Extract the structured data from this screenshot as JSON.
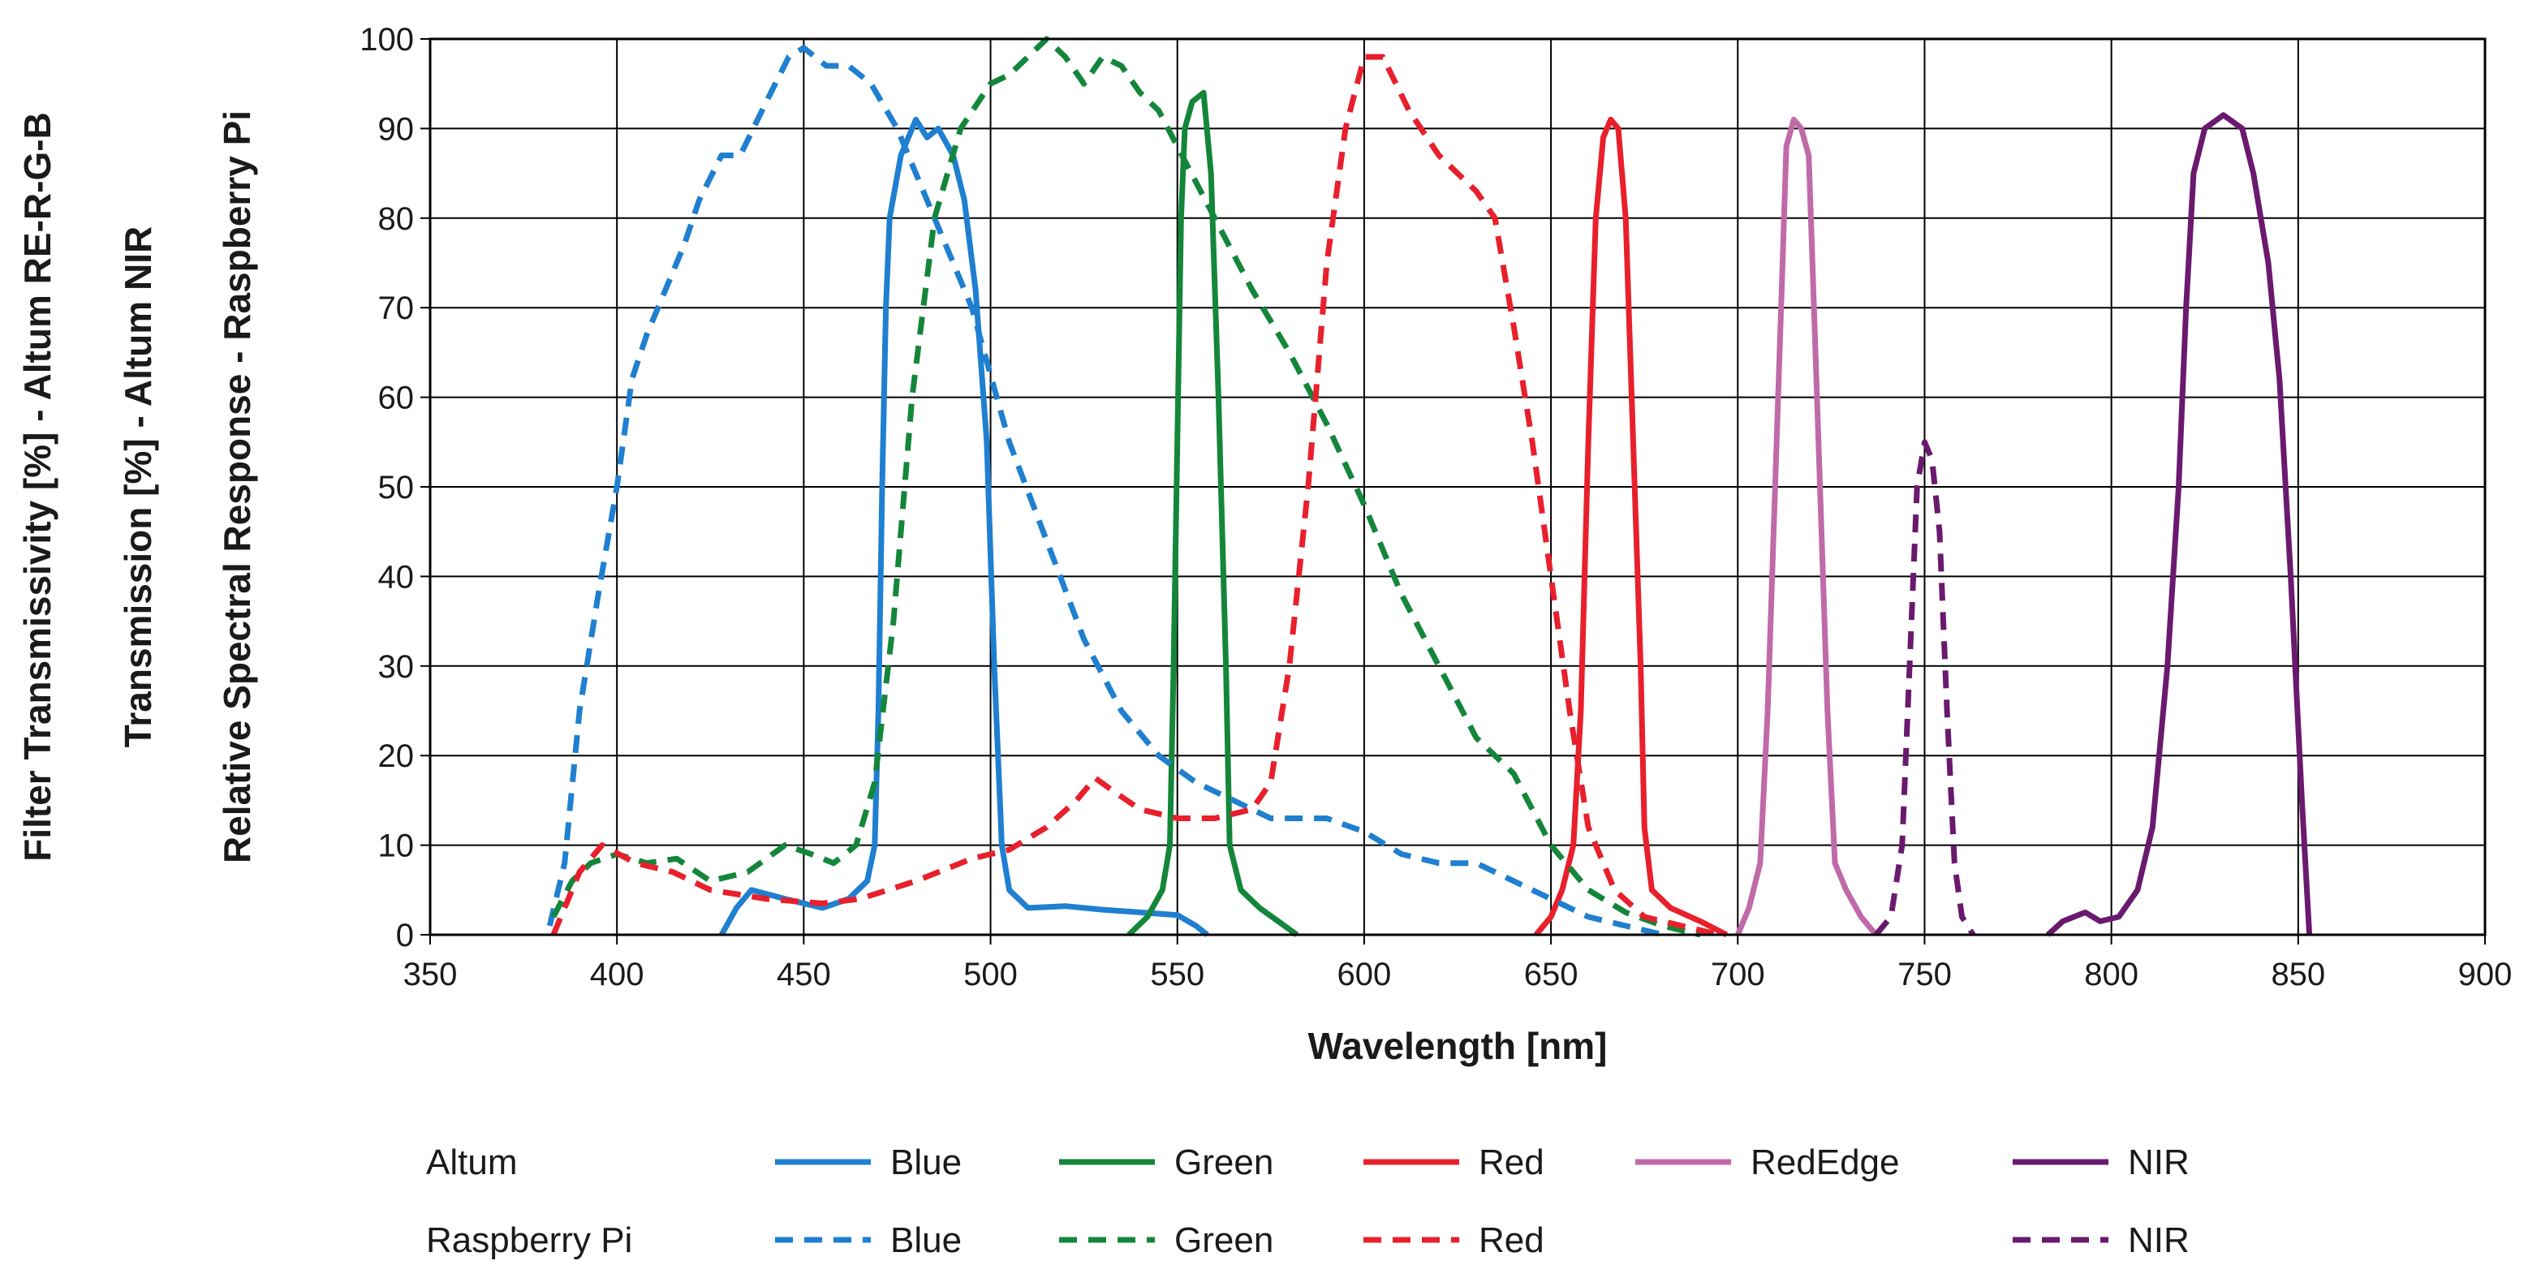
{
  "chart_data": {
    "type": "line",
    "xlabel": "Wavelength [nm]",
    "ylabels": [
      "Filter Transmissivity [%] - Altum RE-R-G-B",
      "Transmission [%] - Altum NIR",
      "Relative Spectral Response - Raspberry Pi"
    ],
    "xlim": [
      350,
      900
    ],
    "ylim": [
      0,
      100
    ],
    "xticks": [
      350,
      400,
      450,
      500,
      550,
      600,
      650,
      700,
      750,
      800,
      850,
      900
    ],
    "yticks": [
      0,
      10,
      20,
      30,
      40,
      50,
      60,
      70,
      80,
      90,
      100
    ],
    "grid": true,
    "legend": {
      "placement": "bottom",
      "rows": [
        "Altum",
        "Raspberry Pi"
      ]
    },
    "series": [
      {
        "name": "Blue",
        "group": "Altum",
        "style": "solid",
        "color": "#1f7fd0",
        "points": [
          [
            428,
            0
          ],
          [
            432,
            3
          ],
          [
            436,
            5
          ],
          [
            445,
            4
          ],
          [
            455,
            3
          ],
          [
            462,
            4
          ],
          [
            467,
            6
          ],
          [
            469,
            10
          ],
          [
            470,
            25
          ],
          [
            471,
            50
          ],
          [
            472,
            70
          ],
          [
            473,
            80
          ],
          [
            476,
            87
          ],
          [
            480,
            91
          ],
          [
            483,
            89
          ],
          [
            486,
            90
          ],
          [
            490,
            87
          ],
          [
            493,
            82
          ],
          [
            496,
            72
          ],
          [
            499,
            55
          ],
          [
            501,
            30
          ],
          [
            503,
            10
          ],
          [
            505,
            5
          ],
          [
            510,
            3
          ],
          [
            520,
            3.2
          ],
          [
            530,
            2.8
          ],
          [
            540,
            2.5
          ],
          [
            550,
            2.2
          ],
          [
            555,
            1
          ],
          [
            558,
            0
          ]
        ]
      },
      {
        "name": "Green",
        "group": "Altum",
        "style": "solid",
        "color": "#14863a",
        "points": [
          [
            537,
            0
          ],
          [
            542,
            2
          ],
          [
            546,
            5
          ],
          [
            548,
            10
          ],
          [
            549,
            30
          ],
          [
            550,
            55
          ],
          [
            551,
            80
          ],
          [
            552,
            90
          ],
          [
            554,
            93
          ],
          [
            557,
            94
          ],
          [
            559,
            85
          ],
          [
            561,
            60
          ],
          [
            563,
            30
          ],
          [
            564,
            10
          ],
          [
            567,
            5
          ],
          [
            572,
            3
          ],
          [
            577,
            1.5
          ],
          [
            582,
            0
          ]
        ]
      },
      {
        "name": "Red",
        "group": "Altum",
        "style": "solid",
        "color": "#e8202c",
        "points": [
          [
            646,
            0
          ],
          [
            650,
            2
          ],
          [
            653,
            5
          ],
          [
            656,
            10
          ],
          [
            658,
            25
          ],
          [
            660,
            55
          ],
          [
            662,
            80
          ],
          [
            664,
            89
          ],
          [
            666,
            91
          ],
          [
            668,
            90
          ],
          [
            670,
            80
          ],
          [
            672,
            55
          ],
          [
            674,
            30
          ],
          [
            675,
            12
          ],
          [
            677,
            5
          ],
          [
            682,
            3
          ],
          [
            690,
            1.5
          ],
          [
            697,
            0
          ]
        ]
      },
      {
        "name": "RedEdge",
        "group": "Altum",
        "style": "solid",
        "color": "#c06aa8",
        "points": [
          [
            700,
            0
          ],
          [
            703,
            3
          ],
          [
            706,
            8
          ],
          [
            708,
            25
          ],
          [
            710,
            50
          ],
          [
            712,
            75
          ],
          [
            713,
            88
          ],
          [
            715,
            91
          ],
          [
            717,
            90
          ],
          [
            719,
            87
          ],
          [
            720,
            75
          ],
          [
            722,
            50
          ],
          [
            724,
            25
          ],
          [
            726,
            8
          ],
          [
            729,
            5
          ],
          [
            733,
            2
          ],
          [
            737,
            0
          ]
        ]
      },
      {
        "name": "NIR",
        "group": "Altum",
        "style": "solid",
        "color": "#6a1a6e",
        "points": [
          [
            783,
            0
          ],
          [
            787,
            1.5
          ],
          [
            793,
            2.5
          ],
          [
            797,
            1.5
          ],
          [
            802,
            2
          ],
          [
            807,
            5
          ],
          [
            811,
            12
          ],
          [
            815,
            30
          ],
          [
            818,
            50
          ],
          [
            820,
            70
          ],
          [
            822,
            85
          ],
          [
            825,
            90
          ],
          [
            830,
            91.5
          ],
          [
            835,
            90
          ],
          [
            838,
            85
          ],
          [
            842,
            75
          ],
          [
            845,
            62
          ],
          [
            848,
            40
          ],
          [
            851,
            15
          ],
          [
            853,
            0
          ]
        ]
      },
      {
        "name": "Blue",
        "group": "Raspberry Pi",
        "style": "dashed",
        "color": "#1f7fd0",
        "points": [
          [
            382,
            1
          ],
          [
            386,
            8
          ],
          [
            390,
            25
          ],
          [
            395,
            38
          ],
          [
            400,
            50
          ],
          [
            404,
            62
          ],
          [
            408,
            67
          ],
          [
            413,
            72
          ],
          [
            418,
            77
          ],
          [
            422,
            82
          ],
          [
            428,
            87
          ],
          [
            433,
            87
          ],
          [
            440,
            93
          ],
          [
            446,
            98
          ],
          [
            450,
            99
          ],
          [
            456,
            97
          ],
          [
            462,
            97
          ],
          [
            468,
            95
          ],
          [
            475,
            90
          ],
          [
            485,
            80
          ],
          [
            495,
            70
          ],
          [
            505,
            55
          ],
          [
            515,
            44
          ],
          [
            525,
            33
          ],
          [
            535,
            25
          ],
          [
            545,
            20
          ],
          [
            555,
            17
          ],
          [
            565,
            15
          ],
          [
            575,
            13
          ],
          [
            590,
            13
          ],
          [
            600,
            11.5
          ],
          [
            610,
            9
          ],
          [
            620,
            8
          ],
          [
            630,
            8
          ],
          [
            640,
            6
          ],
          [
            650,
            4
          ],
          [
            660,
            2
          ],
          [
            670,
            1
          ],
          [
            680,
            0
          ]
        ]
      },
      {
        "name": "Green",
        "group": "Raspberry Pi",
        "style": "dashed",
        "color": "#14863a",
        "points": [
          [
            383,
            2
          ],
          [
            388,
            6
          ],
          [
            393,
            8
          ],
          [
            400,
            9
          ],
          [
            408,
            8
          ],
          [
            416,
            8.5
          ],
          [
            425,
            6
          ],
          [
            435,
            7
          ],
          [
            445,
            10
          ],
          [
            452,
            9
          ],
          [
            458,
            8
          ],
          [
            464,
            10
          ],
          [
            469,
            17
          ],
          [
            474,
            35
          ],
          [
            479,
            60
          ],
          [
            485,
            80
          ],
          [
            492,
            90
          ],
          [
            500,
            95
          ],
          [
            505,
            96
          ],
          [
            510,
            98
          ],
          [
            515,
            100
          ],
          [
            520,
            98
          ],
          [
            525,
            95
          ],
          [
            530,
            98
          ],
          [
            535,
            97
          ],
          [
            540,
            94
          ],
          [
            545,
            92
          ],
          [
            550,
            88
          ],
          [
            560,
            80
          ],
          [
            570,
            72
          ],
          [
            580,
            65
          ],
          [
            590,
            57
          ],
          [
            600,
            48
          ],
          [
            610,
            38
          ],
          [
            620,
            30
          ],
          [
            630,
            22
          ],
          [
            640,
            18
          ],
          [
            650,
            10
          ],
          [
            660,
            5
          ],
          [
            670,
            2.5
          ],
          [
            680,
            1
          ],
          [
            690,
            0
          ]
        ]
      },
      {
        "name": "Red",
        "group": "Raspberry Pi",
        "style": "dashed",
        "color": "#e8202c",
        "points": [
          [
            383,
            0
          ],
          [
            390,
            7
          ],
          [
            396,
            10
          ],
          [
            405,
            8
          ],
          [
            415,
            7
          ],
          [
            425,
            5
          ],
          [
            440,
            4
          ],
          [
            455,
            3.5
          ],
          [
            465,
            4
          ],
          [
            480,
            6
          ],
          [
            495,
            8.5
          ],
          [
            505,
            9.5
          ],
          [
            515,
            12
          ],
          [
            523,
            15
          ],
          [
            528,
            17.5
          ],
          [
            533,
            16
          ],
          [
            540,
            14
          ],
          [
            550,
            13
          ],
          [
            560,
            13
          ],
          [
            570,
            14
          ],
          [
            575,
            17
          ],
          [
            580,
            30
          ],
          [
            585,
            50
          ],
          [
            590,
            75
          ],
          [
            595,
            90
          ],
          [
            600,
            98
          ],
          [
            605,
            98
          ],
          [
            612,
            92
          ],
          [
            620,
            87
          ],
          [
            630,
            83
          ],
          [
            635,
            80
          ],
          [
            640,
            68
          ],
          [
            645,
            55
          ],
          [
            650,
            40
          ],
          [
            655,
            25
          ],
          [
            660,
            12
          ],
          [
            667,
            5
          ],
          [
            675,
            2
          ],
          [
            685,
            1
          ],
          [
            695,
            0
          ]
        ]
      },
      {
        "name": "NIR",
        "group": "Raspberry Pi",
        "style": "dashed",
        "color": "#6a1a6e",
        "points": [
          [
            737,
            0
          ],
          [
            741,
            2
          ],
          [
            744,
            10
          ],
          [
            746,
            30
          ],
          [
            748,
            50
          ],
          [
            750,
            55
          ],
          [
            752,
            53
          ],
          [
            754,
            45
          ],
          [
            756,
            25
          ],
          [
            758,
            8
          ],
          [
            760,
            2
          ],
          [
            763,
            0
          ]
        ]
      }
    ]
  }
}
